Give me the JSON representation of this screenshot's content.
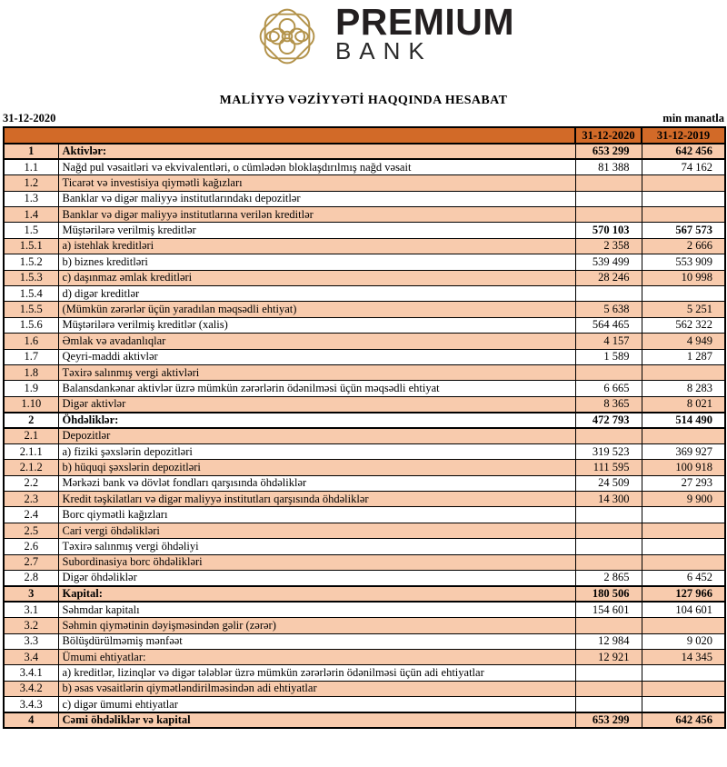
{
  "brand": {
    "name": "PREMIUM",
    "sub": "BANK",
    "emblem_icon": "gold-knot-emblem",
    "gold_color": "#b3934b",
    "text_color": "#231f20"
  },
  "title": "MALİYYƏ VƏZİYYƏTİ HAQQINDA HESABAT",
  "meta": {
    "report_date": "31-12-2020",
    "units_label": "min manatla"
  },
  "table": {
    "colors": {
      "header_bg": "#d26a28",
      "stripe_bg": "#f8cbad",
      "border": "#000000"
    },
    "header": {
      "col_2020": "31-12-2020",
      "col_2019": "31-12-2019"
    },
    "rows": [
      {
        "num": "1",
        "label": "Aktivlər:",
        "v2020": "653 299",
        "v2019": "642 456",
        "section": true
      },
      {
        "num": "1.1",
        "label": "Nağd pul vəsaitləri və  ekvivalentləri, o cümlədən bloklaşdırılmış nağd vəsait",
        "v2020": "81 388",
        "v2019": "74 162"
      },
      {
        "num": "1.2",
        "label": "Ticarət və investisiya qiymətli kağızları",
        "v2020": "",
        "v2019": ""
      },
      {
        "num": "1.3",
        "label": "Banklar və digər maliyyə institutlarındakı depozitlər",
        "v2020": "",
        "v2019": ""
      },
      {
        "num": "1.4",
        "label": "Banklar və digər maliyyə institutlarına verilən kreditlər",
        "v2020": "",
        "v2019": ""
      },
      {
        "num": "1.5",
        "label": "Müştərilərə verilmiş kreditlər",
        "v2020": "570 103",
        "v2019": "567 573",
        "bold_values": true
      },
      {
        "num": "1.5.1",
        "label": "a) istehlak kreditləri",
        "v2020": "2 358",
        "v2019": "2 666"
      },
      {
        "num": "1.5.2",
        "label": "b) biznes kreditləri",
        "v2020": "539 499",
        "v2019": "553 909"
      },
      {
        "num": "1.5.3",
        "label": "c) daşınmaz əmlak kreditləri",
        "v2020": "28 246",
        "v2019": "10 998"
      },
      {
        "num": "1.5.4",
        "label": "d) digər kreditlər",
        "v2020": "",
        "v2019": ""
      },
      {
        "num": "1.5.5",
        "label": "(Mümkün zərərlər üçün yaradılan məqsədli ehtiyat)",
        "v2020": "5 638",
        "v2019": "5 251"
      },
      {
        "num": "1.5.6",
        "label": "Müştərilərə verilmiş kreditlər (xalis)",
        "v2020": "564 465",
        "v2019": "562 322"
      },
      {
        "num": "1.6",
        "label": "Əmlak və avadanlıqlar",
        "v2020": "4 157",
        "v2019": "4 949"
      },
      {
        "num": "1.7",
        "label": "Qeyri-maddi aktivlər",
        "v2020": "1 589",
        "v2019": "1 287"
      },
      {
        "num": "1.8",
        "label": "Təxirə salınmış vergi aktivləri",
        "v2020": "",
        "v2019": ""
      },
      {
        "num": "1.9",
        "label": "Balansdankənar aktivlər üzrə mümkün zərərlərin ödənilməsi üçün məqsədli ehtiyat",
        "v2020": "6 665",
        "v2019": "8 283"
      },
      {
        "num": "1.10",
        "label": "Digər aktivlər",
        "v2020": "8 365",
        "v2019": "8 021"
      },
      {
        "num": "2",
        "label": "Öhdəliklər:",
        "v2020": "472 793",
        "v2019": "514 490",
        "section": true
      },
      {
        "num": "2.1",
        "label": "Depozitlər",
        "v2020": "",
        "v2019": ""
      },
      {
        "num": "2.1.1",
        "label": "a) fiziki şəxslərin depozitləri",
        "v2020": "319 523",
        "v2019": "369 927"
      },
      {
        "num": "2.1.2",
        "label": "b) hüquqi şəxslərin depozitləri",
        "v2020": "111 595",
        "v2019": "100 918"
      },
      {
        "num": "2.2",
        "label": "Mərkəzi bank və dövlət fondları qarşısında öhdəliklər",
        "v2020": "24 509",
        "v2019": "27 293"
      },
      {
        "num": "2.3",
        "label": "Kredit təşkilatları və digər maliyyə institutları qarşısında öhdəliklər",
        "v2020": "14 300",
        "v2019": "9 900"
      },
      {
        "num": "2.4",
        "label": "Borc qiymətli kağızları",
        "v2020": "",
        "v2019": ""
      },
      {
        "num": "2.5",
        "label": "Cari vergi öhdəlikləri",
        "v2020": "",
        "v2019": ""
      },
      {
        "num": "2.6",
        "label": "Təxirə salınmış vergi öhdəliyi",
        "v2020": "",
        "v2019": ""
      },
      {
        "num": "2.7",
        "label": "Subordinasiya borc öhdəlikləri",
        "v2020": "",
        "v2019": ""
      },
      {
        "num": "2.8",
        "label": "Digər öhdəliklər",
        "v2020": "2 865",
        "v2019": "6 452"
      },
      {
        "num": "3",
        "label": "Kapital:",
        "v2020": "180 506",
        "v2019": "127 966",
        "section": true
      },
      {
        "num": "3.1",
        "label": "Səhmdar kapitalı",
        "v2020": "154 601",
        "v2019": "104 601"
      },
      {
        "num": "3.2",
        "label": "Səhmin qiymətinin dəyişməsindən gəlir (zərər)",
        "v2020": "",
        "v2019": ""
      },
      {
        "num": "3.3",
        "label": "Bölüşdürülməmiş mənfəət",
        "v2020": "12 984",
        "v2019": "9 020"
      },
      {
        "num": "3.4",
        "label": "Ümumi ehtiyatlar:",
        "v2020": "12 921",
        "v2019": "14 345"
      },
      {
        "num": "3.4.1",
        "label": "a) kreditlər, lizinqlər və digər tələblər üzrə mümkün zərərlərin ödənilməsi üçün adi ehtiyatlar",
        "v2020": "",
        "v2019": ""
      },
      {
        "num": "3.4.2",
        "label": "b) əsas vəsaitlərin qiymətləndirilməsindən adi ehtiyatlar",
        "v2020": "",
        "v2019": ""
      },
      {
        "num": "3.4.3",
        "label": "c) digər ümumi ehtiyatlar",
        "v2020": "",
        "v2019": ""
      },
      {
        "num": "4",
        "label": "Cəmi öhdəliklər və kapital",
        "v2020": "653 299",
        "v2019": "642 456",
        "section": true
      }
    ]
  }
}
